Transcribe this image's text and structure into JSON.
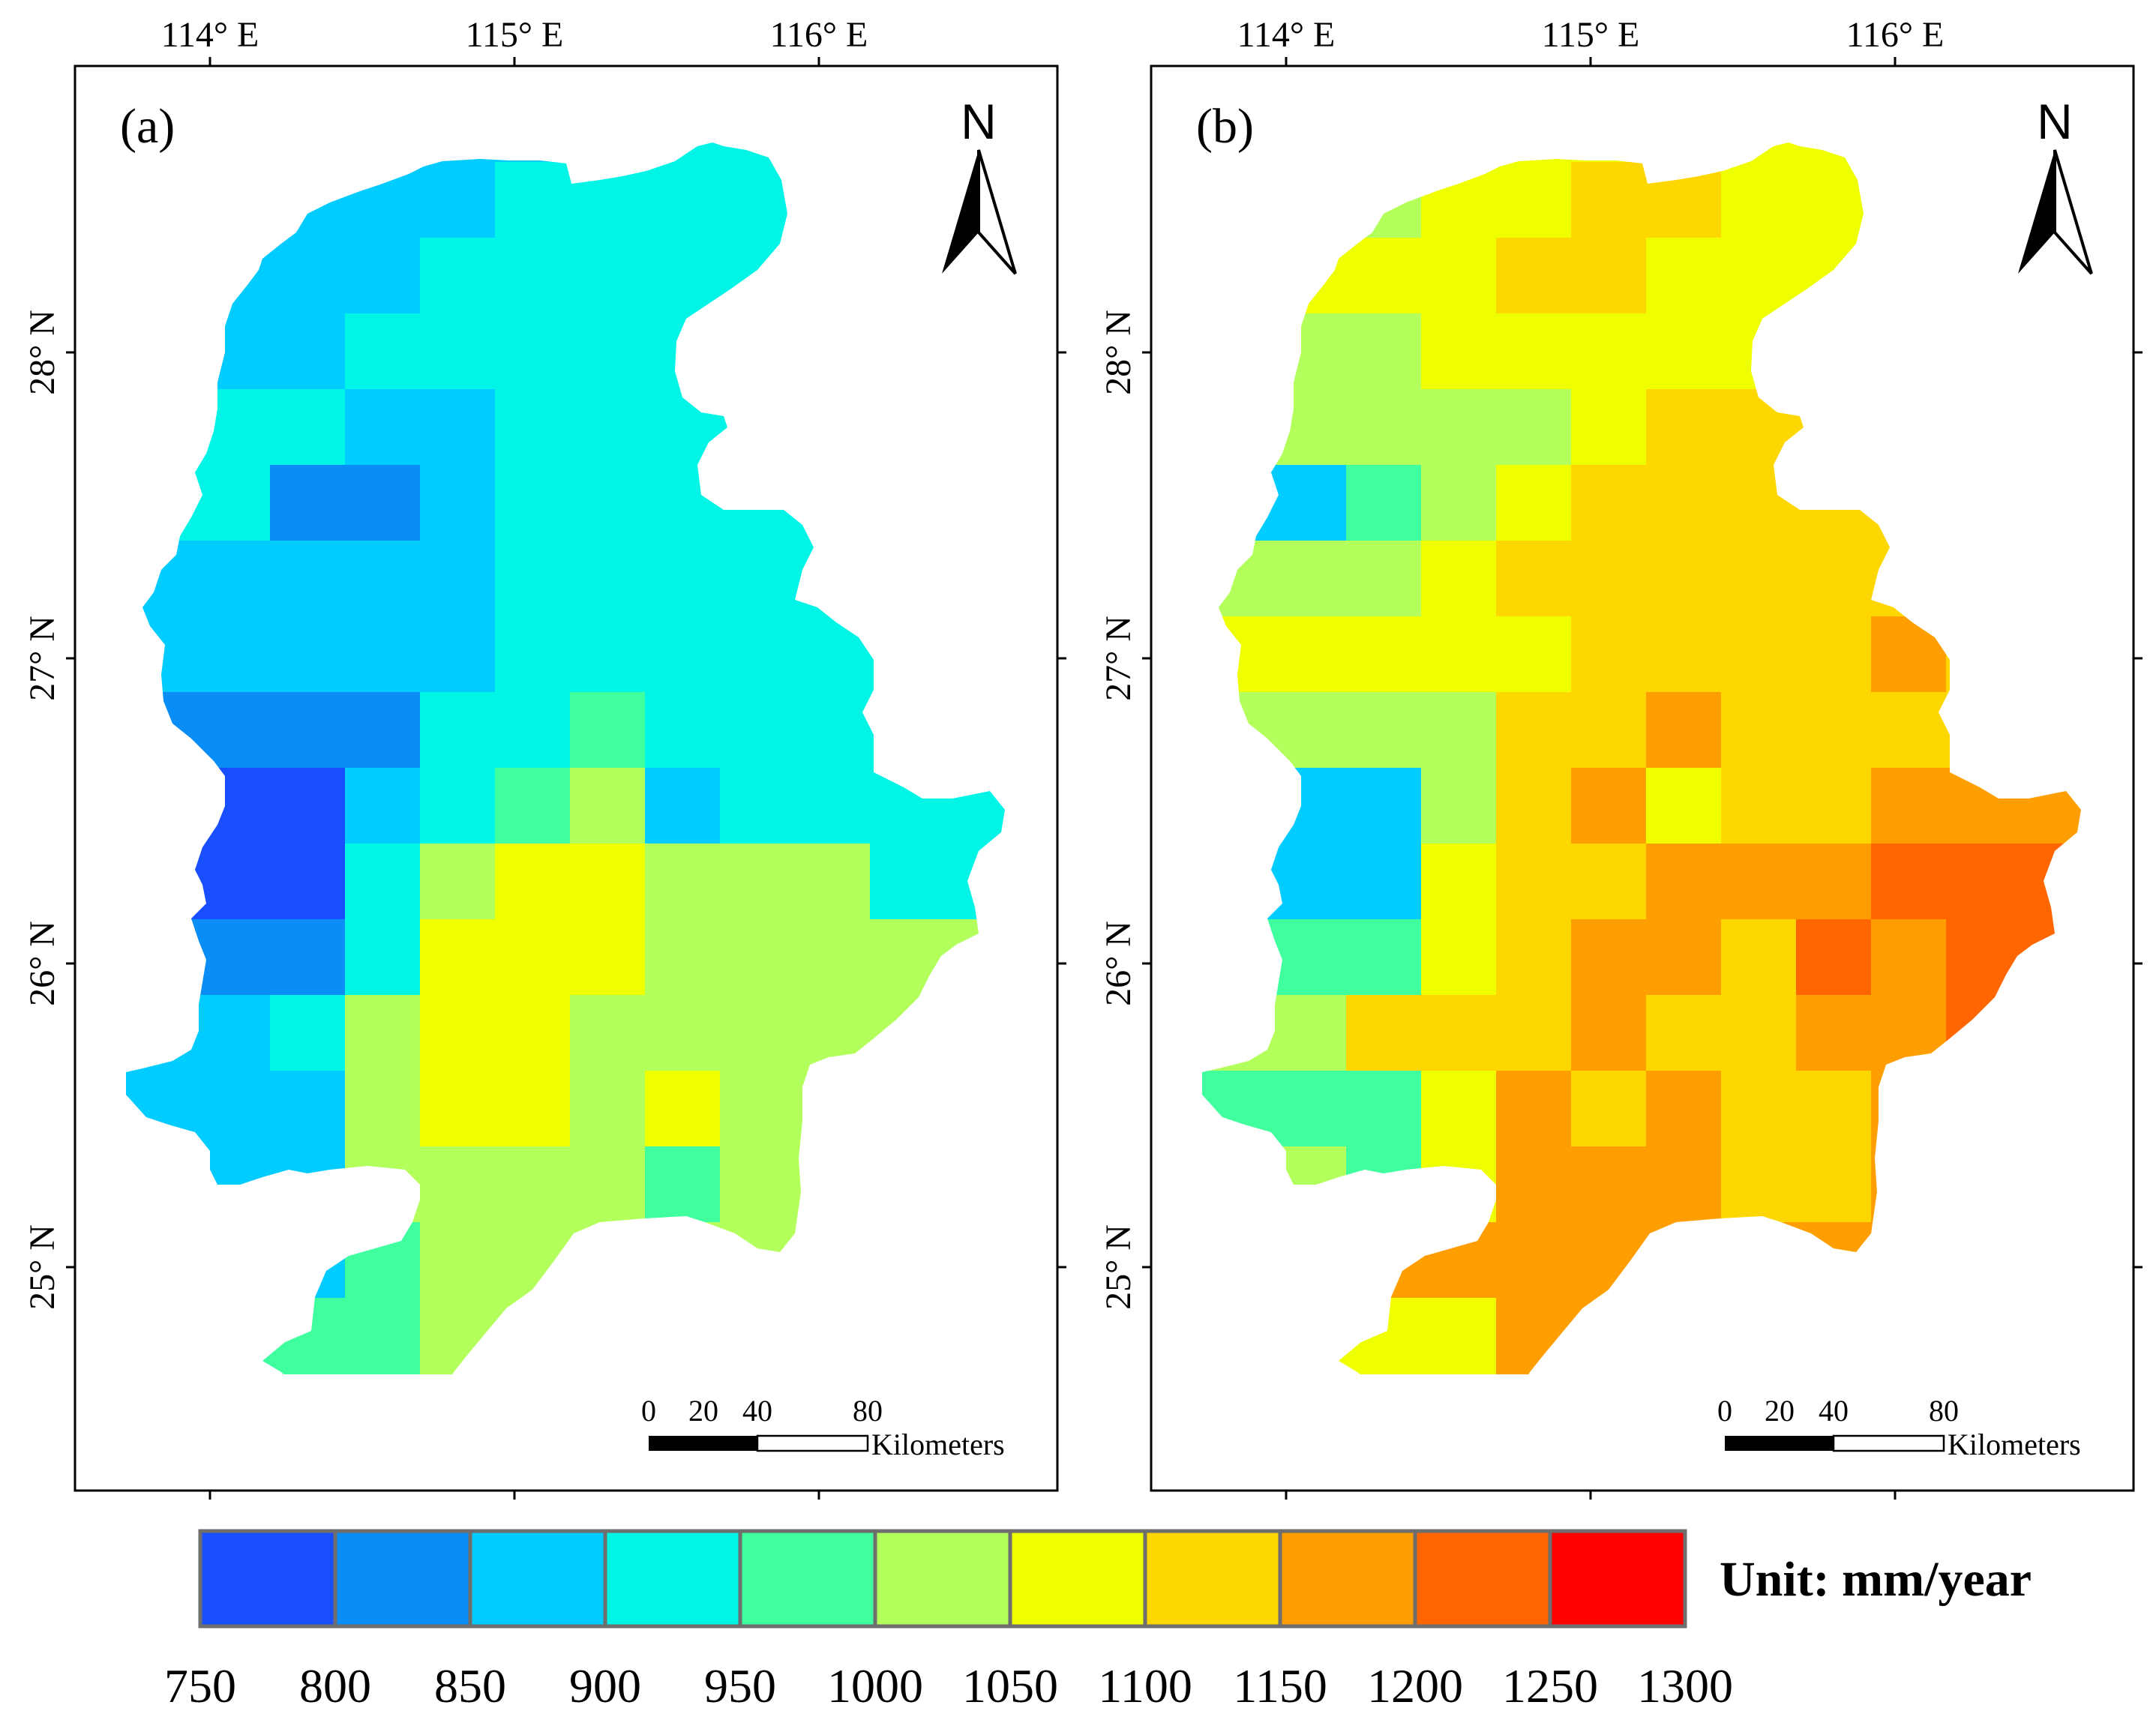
{
  "map": {
    "longitude_labels": [
      "114° E",
      "115° E",
      "116° E"
    ],
    "latitude_labels": [
      "28° N",
      "27° N",
      "26° N",
      "25° N"
    ],
    "north_letter": "N",
    "scale_bar": {
      "ticks": [
        "0",
        "20",
        "40",
        "80"
      ],
      "unit": "Kilometers"
    },
    "panels": [
      {
        "id": "a",
        "label": "(a)",
        "classes": [
          "1000-1050",
          "1000-1050",
          "1000-1050",
          "1000-1050",
          "1000-1050",
          "1000-1050",
          "1000-1050",
          "1000-1050",
          "1000-1050",
          "1000-1050",
          "1000-1050",
          "1000-1050",
          "1000-1050"
        ]
      },
      {
        "id": "b",
        "label": "(b)"
      }
    ]
  },
  "legend": {
    "breaks": [
      "750",
      "800",
      "850",
      "900",
      "950",
      "1000",
      "1050",
      "1100",
      "1150",
      "1200",
      "1250",
      "1300"
    ],
    "colors": [
      "#1a4fff",
      "#0a8ef5",
      "#00ccff",
      "#00f5e6",
      "#40ff9e",
      "#b3ff5c",
      "#f0ff00",
      "#ffd700",
      "#ff9e00",
      "#ff6600",
      "#ff0000"
    ],
    "unit_label": "Unit: mm/year"
  },
  "grids": {
    "a": [
      "...CCCCD...FF.",
      "..CCCDDDDDFFG.",
      "..CCDDDDDDFF..",
      "..CDDDDDDDD...",
      "..DCCDDDDDD...",
      ".DBBCDDDDDDD..",
      ".CCCCDDDDDDDC.",
      ".CCCCDDDDDDDC.",
      ".BBBDDEDDDDDDD",
      "..ACDEFCDDDDCC",
      "..ADFGGFFFDDD.",
      "..BDGGGFFFFF..",
      ".CDFGGFFFFFC..",
      "..CFGGFGFFF...",
      ".....FFEFFF...",
      ".....FFF......",
      "...EFFF......."
    ],
    "b": [
      "...FGGGGGGGD..",
      "..FGGHHGGGGG..",
      "..GGHHGGGGG...",
      "..FGGGGGHHG...",
      "..FFFGHHHHG...",
      ".CEFGHHHHHHG..",
      ".FFGHHHHHHHG..",
      ".GGGGHHHHIHG..",
      ".FFFHHIHHHHII.",
      "..CFHIGHHIIII.",
      "..CGHHIIIJJJJ.",
      "..EGHIIHJIJJ..",
      ".FHHHIHHIIJ...",
      "..EGIHIHHIIG..",
      ".....IIHHII...",
      "...IIIII......",
      "...GIII......."
    ]
  }
}
